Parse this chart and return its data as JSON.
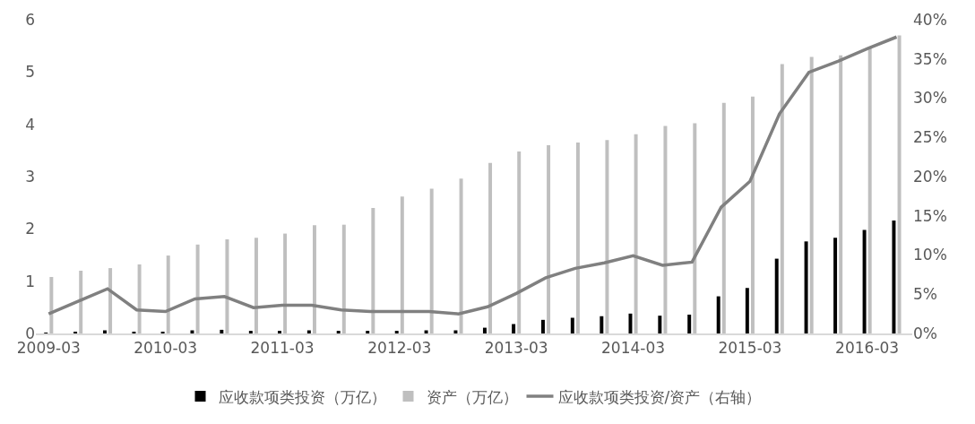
{
  "chart_data": {
    "type": "bar",
    "x": [
      "2009-03",
      "2009-06",
      "2009-09",
      "2009-12",
      "2010-03",
      "2010-06",
      "2010-09",
      "2010-12",
      "2011-03",
      "2011-06",
      "2011-09",
      "2011-12",
      "2012-03",
      "2012-06",
      "2012-09",
      "2012-12",
      "2013-03",
      "2013-06",
      "2013-09",
      "2013-12",
      "2014-03",
      "2014-06",
      "2014-09",
      "2014-12",
      "2015-03",
      "2015-06",
      "2015-09",
      "2015-12",
      "2016-03",
      "2016-06"
    ],
    "series": [
      {
        "name": "应收款项类投资（万亿）",
        "color": "#000000",
        "values": [
          0.01,
          0.03,
          0.06,
          0.02,
          0.02,
          0.06,
          0.07,
          0.05,
          0.05,
          0.06,
          0.05,
          0.05,
          0.05,
          0.06,
          0.06,
          0.11,
          0.18,
          0.26,
          0.3,
          0.33,
          0.38,
          0.34,
          0.36,
          0.71,
          0.87,
          1.43,
          1.76,
          1.83,
          1.98,
          2.16
        ]
      },
      {
        "name": "资产（万亿）",
        "color": "#bfbfbf",
        "values": [
          1.08,
          1.2,
          1.25,
          1.32,
          1.49,
          1.7,
          1.8,
          1.83,
          1.91,
          2.07,
          2.08,
          2.4,
          2.62,
          2.77,
          2.96,
          3.26,
          3.48,
          3.6,
          3.65,
          3.7,
          3.81,
          3.97,
          4.02,
          4.41,
          4.53,
          5.15,
          5.29,
          5.32,
          5.47,
          5.7
        ]
      },
      {
        "name": "应收款项类投资/资产（右轴）",
        "color": "#808080",
        "type": "line",
        "axis": "y2",
        "values": [
          2.5,
          4.1,
          5.7,
          3.0,
          2.8,
          4.4,
          4.7,
          3.3,
          3.6,
          3.6,
          3.0,
          2.8,
          2.8,
          2.8,
          2.5,
          3.4,
          5.1,
          7.1,
          8.3,
          9.0,
          9.9,
          8.7,
          9.1,
          16.1,
          19.4,
          28.0,
          33.3,
          34.7,
          36.3,
          37.8
        ]
      }
    ],
    "xlim": [
      "2009-01-20",
      "2016-07-20"
    ],
    "xticks": [
      "2009-03",
      "2010-03",
      "2011-03",
      "2012-03",
      "2013-03",
      "2014-03",
      "2015-03",
      "2016-03"
    ],
    "ylim": [
      0,
      6
    ],
    "yticks": [
      0,
      1,
      2,
      3,
      4,
      5,
      6
    ],
    "y2lim": [
      0,
      40
    ],
    "y2ticks": [
      {
        "value": 0,
        "label": "0%"
      },
      {
        "value": 5,
        "label": "5%"
      },
      {
        "value": 10,
        "label": "10%"
      },
      {
        "value": 15,
        "label": "15%"
      },
      {
        "value": 20,
        "label": "20%"
      },
      {
        "value": 25,
        "label": "25%"
      },
      {
        "value": 30,
        "label": "30%"
      },
      {
        "value": 35,
        "label": "35%"
      },
      {
        "value": 40,
        "label": "40%"
      }
    ],
    "legend": "bottom",
    "marker": "none"
  }
}
